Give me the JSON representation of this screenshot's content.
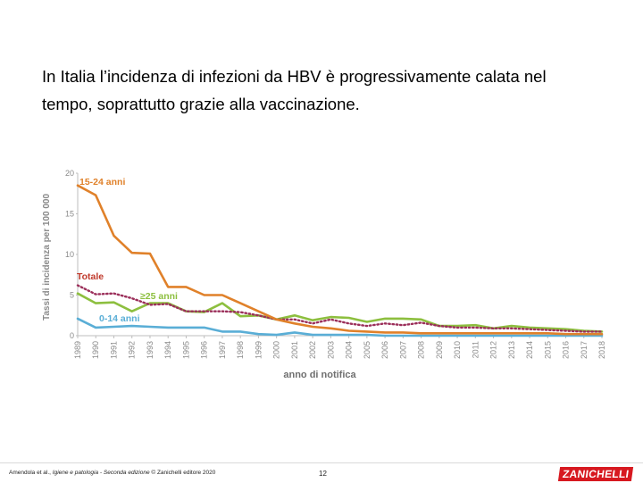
{
  "slide": {
    "text_line_1": "In Italia l’incidenza di infezioni da HBV è progressivamente calata nel",
    "text_line_2": "tempo, soprattutto grazie alla vaccinazione."
  },
  "footer": {
    "credit_prefix": "Amendola et al., ",
    "credit_title": "Igiene e patologia - Seconda edizione",
    "credit_suffix": " © Zanichelli editore 2020",
    "page_number": "12",
    "brand": "ZANICHELLI"
  },
  "colors": {
    "series_15_24": "#e0812a",
    "series_totale": "#9b2f5a",
    "series_25plus": "#8dbf3f",
    "series_0_14": "#5aaed6",
    "axis_labels": "#8a8a8a",
    "series_label_totale": "#c0392b",
    "brand": "#d71920"
  },
  "chart_data": {
    "type": "line",
    "xlabel": "anno di notifica",
    "ylabel": "Tassi di incidenza per 100 000",
    "ylim": [
      0,
      20
    ],
    "yticks": [
      "0",
      "5",
      "10",
      "15",
      "20"
    ],
    "grid": false,
    "x": [
      "1989",
      "1990",
      "1991",
      "1992",
      "1993",
      "1994",
      "1995",
      "1996",
      "1997",
      "1998",
      "1999",
      "2000",
      "2001",
      "2002",
      "2003",
      "2004",
      "2005",
      "2006",
      "2007",
      "2008",
      "2009",
      "2010",
      "2011",
      "2012",
      "2013",
      "2014",
      "2015",
      "2016",
      "2017",
      "2018"
    ],
    "series": [
      {
        "name": "15-24 anni",
        "color": "#e0812a",
        "style": "solid",
        "values": [
          18.5,
          17.3,
          12.3,
          10.2,
          10.1,
          6.0,
          6.0,
          5.0,
          5.0,
          4.0,
          3.0,
          2.0,
          1.5,
          1.1,
          0.9,
          0.6,
          0.5,
          0.4,
          0.4,
          0.3,
          0.3,
          0.3,
          0.3,
          0.3,
          0.3,
          0.3,
          0.3,
          0.2,
          0.2,
          0.2
        ]
      },
      {
        "name": "Totale",
        "color": "#9b2f5a",
        "style": "dotted",
        "values": [
          6.2,
          5.1,
          5.2,
          4.6,
          3.8,
          3.9,
          3.0,
          3.0,
          3.0,
          2.9,
          2.5,
          2.0,
          2.0,
          1.5,
          2.0,
          1.5,
          1.2,
          1.5,
          1.3,
          1.6,
          1.2,
          1.0,
          1.0,
          0.9,
          0.9,
          0.8,
          0.7,
          0.6,
          0.5,
          0.5
        ]
      },
      {
        "name": "≥25 anni",
        "color": "#8dbf3f",
        "style": "solid",
        "values": [
          5.2,
          4.0,
          4.1,
          3.0,
          4.0,
          4.0,
          3.0,
          2.9,
          4.0,
          2.4,
          2.5,
          2.0,
          2.5,
          1.9,
          2.3,
          2.2,
          1.7,
          2.1,
          2.1,
          2.0,
          1.2,
          1.2,
          1.3,
          0.9,
          1.2,
          1.0,
          0.9,
          0.8,
          0.6,
          0.5
        ]
      },
      {
        "name": "0-14 anni",
        "color": "#5aaed6",
        "style": "solid",
        "values": [
          2.1,
          1.0,
          1.1,
          1.2,
          1.1,
          1.0,
          1.0,
          1.0,
          0.5,
          0.5,
          0.2,
          0.1,
          0.4,
          0.1,
          0.1,
          0.1,
          0.1,
          0.0,
          0.0,
          0.0,
          0.0,
          0.0,
          0.0,
          0.0,
          0.0,
          0.0,
          0.0,
          0.0,
          0.0,
          0.0
        ]
      }
    ]
  }
}
